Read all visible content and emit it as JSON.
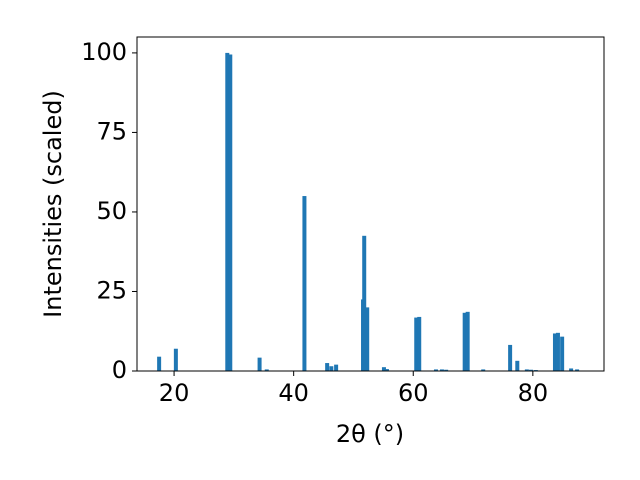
{
  "chart_data": {
    "type": "bar",
    "xlabel": "2θ (°)",
    "ylabel": "Intensities (scaled)",
    "color": "#1f77b4",
    "x": [
      17.5,
      20.3,
      28.9,
      29.4,
      34.3,
      35.5,
      41.8,
      45.6,
      46.3,
      47.1,
      51.6,
      51.8,
      52.3,
      55.1,
      55.6,
      60.5,
      61.0,
      63.8,
      64.8,
      65.5,
      68.6,
      69.1,
      71.7,
      76.2,
      77.4,
      79.0,
      79.7,
      80.5,
      83.7,
      84.2,
      84.9,
      86.4,
      87.4
    ],
    "values": [
      4.5,
      7,
      100,
      99.5,
      4.2,
      0.5,
      55,
      2.5,
      1.5,
      2,
      22.5,
      42.5,
      20,
      1.2,
      0.6,
      16.8,
      17,
      0.5,
      0.5,
      0.4,
      18.3,
      18.6,
      0.5,
      8.2,
      3.2,
      0.5,
      0.4,
      0.3,
      11.8,
      12,
      10.8,
      0.8,
      0.5
    ],
    "xlim": [
      13.8,
      91.9
    ],
    "ylim": [
      0,
      105
    ],
    "xticks": [
      20,
      40,
      60,
      80
    ],
    "yticks": [
      0,
      25,
      50,
      75,
      100
    ]
  }
}
